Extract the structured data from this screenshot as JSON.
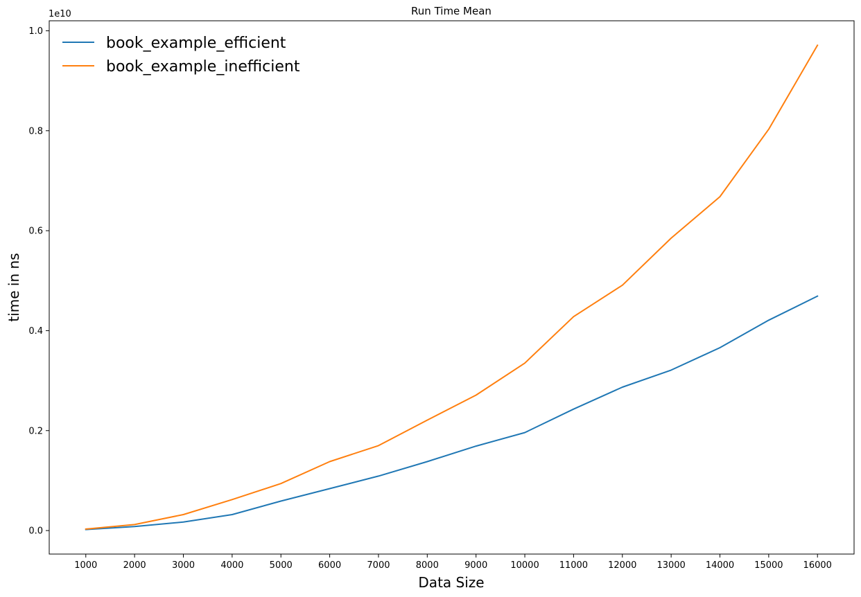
{
  "chart_data": {
    "type": "line",
    "title": "Run Time Mean",
    "xlabel": "Data Size",
    "ylabel": "time in ns",
    "y_offset_label": "1e10",
    "x": [
      1000,
      2000,
      3000,
      4000,
      5000,
      6000,
      7000,
      8000,
      9000,
      10000,
      11000,
      12000,
      13000,
      14000,
      15000,
      16000
    ],
    "x_ticks": [
      "1000",
      "2000",
      "3000",
      "4000",
      "5000",
      "6000",
      "7000",
      "8000",
      "9000",
      "10000",
      "11000",
      "12000",
      "13000",
      "14000",
      "15000",
      "16000"
    ],
    "y_ticks": [
      {
        "value": 0.0,
        "label": "0.0"
      },
      {
        "value": 0.2,
        "label": "0.2"
      },
      {
        "value": 0.4,
        "label": "0.4"
      },
      {
        "value": 0.6,
        "label": "0.6"
      },
      {
        "value": 0.8,
        "label": "0.8"
      },
      {
        "value": 1.0,
        "label": "1.0"
      }
    ],
    "xlim": [
      250,
      16750
    ],
    "ylim": [
      -0.047,
      1.02
    ],
    "y_scale_note": "values in units of 1e10 ns",
    "grid": false,
    "legend_position": "top-left",
    "series": [
      {
        "name": "book_example_efficient",
        "color": "#1f77b4",
        "values": [
          0.002,
          0.008,
          0.017,
          0.032,
          0.059,
          0.084,
          0.109,
          0.138,
          0.169,
          0.196,
          0.243,
          0.287,
          0.321,
          0.366,
          0.421,
          0.469
        ]
      },
      {
        "name": "book_example_inefficient",
        "color": "#ff7f0e",
        "values": [
          0.003,
          0.012,
          0.032,
          0.062,
          0.094,
          0.138,
          0.17,
          0.221,
          0.271,
          0.335,
          0.428,
          0.491,
          0.585,
          0.668,
          0.803,
          0.971
        ]
      }
    ]
  }
}
